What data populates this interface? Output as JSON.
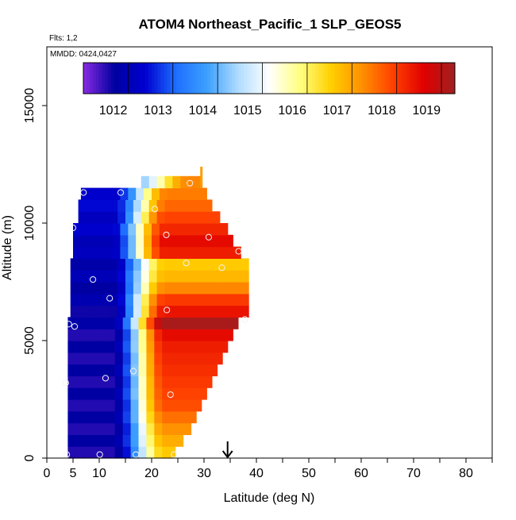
{
  "chart_data": {
    "type": "heatmap",
    "title": "ATOM4 Northeast_Pacific_1 SLP_GEOS5",
    "subtitle_flights": "Flts: 1,2",
    "subtitle_dates": "MMDD: 0424,0427",
    "xlabel": "Latitude (deg N)",
    "ylabel": "Altitude (m)",
    "xlim": [
      0,
      85
    ],
    "ylim": [
      0,
      17500
    ],
    "x_ticks": [
      0,
      5,
      10,
      20,
      30,
      40,
      50,
      60,
      70,
      80
    ],
    "x_tick_labels": [
      "0",
      "5",
      "10",
      "20",
      "30",
      "40",
      "50",
      "60",
      "70",
      "80"
    ],
    "y_ticks": [
      0,
      5000,
      10000,
      15000
    ],
    "y_tick_labels": [
      "0",
      "5000",
      "10000",
      "15000"
    ],
    "colorbar": {
      "range": [
        1011,
        1019.3
      ],
      "ticks": [
        1012,
        1013,
        1014,
        1015,
        1016,
        1017,
        1018,
        1019
      ],
      "tick_labels": [
        "1012",
        "1013",
        "1014",
        "1015",
        "1016",
        "1017",
        "1018",
        "1019"
      ],
      "colors": [
        "#8a2be2",
        "#0000a0",
        "#0000d0",
        "#1e6fff",
        "#3ca0ff",
        "#b0dcff",
        "#ffffff",
        "#ffff80",
        "#ffd000",
        "#ff9000",
        "#ff4000",
        "#e00000",
        "#a02020"
      ]
    },
    "marker_latitude": 34.5,
    "altitude_bins": [
      {
        "alt": 250,
        "lat_min": 4.0,
        "lat_max": 24.5,
        "left_val": 1011.6,
        "right_val": 1016.6,
        "transition_lat": 17.5
      },
      {
        "alt": 750,
        "lat_min": 4.0,
        "lat_max": 26.0,
        "left_val": 1011.6,
        "right_val": 1016.9,
        "transition_lat": 17.5
      },
      {
        "alt": 1250,
        "lat_min": 4.0,
        "lat_max": 27.5,
        "left_val": 1011.6,
        "right_val": 1017.2,
        "transition_lat": 17.5
      },
      {
        "alt": 1750,
        "lat_min": 4.0,
        "lat_max": 28.5,
        "left_val": 1011.6,
        "right_val": 1017.5,
        "transition_lat": 17.5
      },
      {
        "alt": 2250,
        "lat_min": 4.0,
        "lat_max": 29.5,
        "left_val": 1011.6,
        "right_val": 1017.8,
        "transition_lat": 17.5
      },
      {
        "alt": 2750,
        "lat_min": 4.0,
        "lat_max": 30.5,
        "left_val": 1011.6,
        "right_val": 1017.9,
        "transition_lat": 17.5
      },
      {
        "alt": 3250,
        "lat_min": 4.0,
        "lat_max": 31.5,
        "left_val": 1011.6,
        "right_val": 1018.0,
        "transition_lat": 17.5
      },
      {
        "alt": 3750,
        "lat_min": 4.0,
        "lat_max": 32.5,
        "left_val": 1011.6,
        "right_val": 1018.1,
        "transition_lat": 17.5
      },
      {
        "alt": 4250,
        "lat_min": 4.0,
        "lat_max": 33.5,
        "left_val": 1011.6,
        "right_val": 1018.2,
        "transition_lat": 17.5
      },
      {
        "alt": 4750,
        "lat_min": 4.0,
        "lat_max": 34.5,
        "left_val": 1011.6,
        "right_val": 1018.3,
        "transition_lat": 17.5
      },
      {
        "alt": 5250,
        "lat_min": 4.0,
        "lat_max": 35.5,
        "left_val": 1011.6,
        "right_val": 1018.5,
        "transition_lat": 17.5
      },
      {
        "alt": 5750,
        "lat_min": 4.0,
        "lat_max": 36.5,
        "left_val": 1011.7,
        "right_val": 1019.2,
        "transition_lat": 17.5
      },
      {
        "alt": 6250,
        "lat_min": 4.5,
        "lat_max": 38.5,
        "left_val": 1011.7,
        "right_val": 1018.4,
        "transition_lat": 17.5
      },
      {
        "alt": 6750,
        "lat_min": 4.5,
        "lat_max": 38.5,
        "left_val": 1011.8,
        "right_val": 1018.0,
        "transition_lat": 17.5
      },
      {
        "alt": 7250,
        "lat_min": 4.5,
        "lat_max": 38.5,
        "left_val": 1011.8,
        "right_val": 1017.3,
        "transition_lat": 17.5
      },
      {
        "alt": 7750,
        "lat_min": 4.5,
        "lat_max": 38.5,
        "left_val": 1011.9,
        "right_val": 1016.8,
        "transition_lat": 17.5
      },
      {
        "alt": 8250,
        "lat_min": 4.5,
        "lat_max": 38.5,
        "left_val": 1011.9,
        "right_val": 1016.6,
        "transition_lat": 17.5
      },
      {
        "alt": 8750,
        "lat_min": 5.0,
        "lat_max": 37.0,
        "left_val": 1012.0,
        "right_val": 1018.3,
        "transition_lat": 17.5
      },
      {
        "alt": 9250,
        "lat_min": 5.0,
        "lat_max": 35.5,
        "left_val": 1012.1,
        "right_val": 1018.5,
        "transition_lat": 17.5
      },
      {
        "alt": 9750,
        "lat_min": 5.0,
        "lat_max": 34.5,
        "left_val": 1012.2,
        "right_val": 1018.2,
        "transition_lat": 17.5
      },
      {
        "alt": 10250,
        "lat_min": 6.0,
        "lat_max": 33.0,
        "left_val": 1012.2,
        "right_val": 1017.9,
        "transition_lat": 17.5
      },
      {
        "alt": 10750,
        "lat_min": 6.0,
        "lat_max": 31.5,
        "left_val": 1012.3,
        "right_val": 1017.6,
        "transition_lat": 18.0
      },
      {
        "alt": 11250,
        "lat_min": 6.5,
        "lat_max": 30.5,
        "left_val": 1012.4,
        "right_val": 1017.4,
        "transition_lat": 18.0
      },
      {
        "alt": 11750,
        "lat_min": 18.0,
        "lat_max": 29.5,
        "left_val": 1014.0,
        "right_val": 1017.3,
        "transition_lat": 22.0
      }
    ],
    "spike": {
      "lat": 29.5,
      "alt_min": 11500,
      "alt_max": 12400
    },
    "flight_points": [
      {
        "lat": 3.8,
        "alt": 150
      },
      {
        "lat": 10.1,
        "alt": 150
      },
      {
        "lat": 17.0,
        "alt": 150
      },
      {
        "lat": 24.3,
        "alt": 150
      },
      {
        "lat": 3.6,
        "alt": 3200
      },
      {
        "lat": 11.2,
        "alt": 3400
      },
      {
        "lat": 16.5,
        "alt": 3700
      },
      {
        "lat": 23.6,
        "alt": 2700
      },
      {
        "lat": 4.2,
        "alt": 5700
      },
      {
        "lat": 5.3,
        "alt": 5600
      },
      {
        "lat": 37.8,
        "alt": 5900
      },
      {
        "lat": 22.9,
        "alt": 6300
      },
      {
        "lat": 12.0,
        "alt": 6800
      },
      {
        "lat": 8.8,
        "alt": 7600
      },
      {
        "lat": 33.4,
        "alt": 8100
      },
      {
        "lat": 26.6,
        "alt": 8300
      },
      {
        "lat": 36.6,
        "alt": 8800
      },
      {
        "lat": 5.0,
        "alt": 9800
      },
      {
        "lat": 22.8,
        "alt": 9500
      },
      {
        "lat": 30.9,
        "alt": 9400
      },
      {
        "lat": 20.6,
        "alt": 10600
      },
      {
        "lat": 7.0,
        "alt": 11300
      },
      {
        "lat": 14.1,
        "alt": 11300
      },
      {
        "lat": 27.3,
        "alt": 11700
      }
    ]
  }
}
